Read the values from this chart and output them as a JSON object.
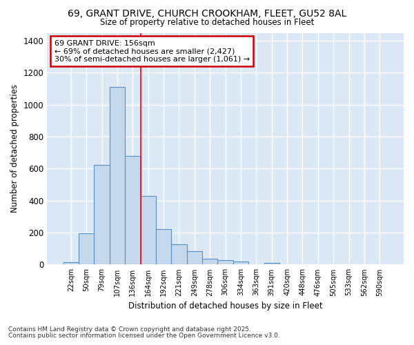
{
  "title_line1": "69, GRANT DRIVE, CHURCH CROOKHAM, FLEET, GU52 8AL",
  "title_line2": "Size of property relative to detached houses in Fleet",
  "xlabel": "Distribution of detached houses by size in Fleet",
  "ylabel": "Number of detached properties",
  "categories": [
    "22sqm",
    "50sqm",
    "79sqm",
    "107sqm",
    "136sqm",
    "164sqm",
    "192sqm",
    "221sqm",
    "249sqm",
    "278sqm",
    "306sqm",
    "334sqm",
    "363sqm",
    "391sqm",
    "420sqm",
    "448sqm",
    "476sqm",
    "505sqm",
    "533sqm",
    "562sqm",
    "590sqm"
  ],
  "values": [
    15,
    195,
    625,
    1110,
    680,
    430,
    220,
    125,
    85,
    35,
    28,
    20,
    2,
    12,
    0,
    0,
    0,
    0,
    0,
    0,
    0
  ],
  "bar_color": "#c5d8ec",
  "bar_edge_color": "#5590c8",
  "plot_bg_color": "#dce8f5",
  "figure_bg_color": "#ffffff",
  "grid_color": "#ffffff",
  "red_line_index": 5,
  "annotation_text": "69 GRANT DRIVE: 156sqm\n← 69% of detached houses are smaller (2,427)\n30% of semi-detached houses are larger (1,061) →",
  "annotation_box_color": "#ffffff",
  "annotation_box_edge": "#cc0000",
  "footnote_line1": "Contains HM Land Registry data © Crown copyright and database right 2025.",
  "footnote_line2": "Contains public sector information licensed under the Open Government Licence v3.0.",
  "ylim": [
    0,
    1450
  ],
  "yticks": [
    0,
    200,
    400,
    600,
    800,
    1000,
    1200,
    1400
  ]
}
